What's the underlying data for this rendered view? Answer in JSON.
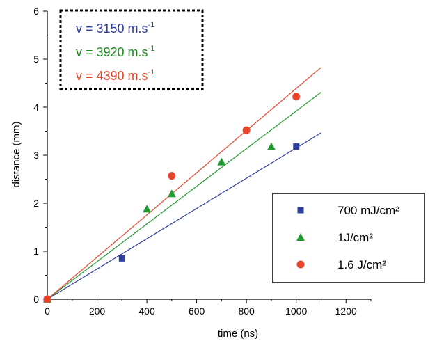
{
  "chart_data": {
    "type": "scatter",
    "xlabel": "time (ns)",
    "ylabel": "distance (mm)",
    "xlim": [
      0,
      1300
    ],
    "ylim": [
      0,
      6
    ],
    "xticks": [
      "0",
      "200",
      "400",
      "600",
      "800",
      "1000",
      "1200"
    ],
    "yticks": [
      "0",
      "1",
      "2",
      "3",
      "4",
      "5",
      "6"
    ],
    "grid": false,
    "legend_position": "bottom-right",
    "velocity_box": {
      "position": "top-left",
      "lines": [
        {
          "text": "v = 3150 m.s",
          "sup": "-1",
          "color": "#2e3f9e"
        },
        {
          "text": "v = 3920 m.s",
          "sup": "-1",
          "color": "#1f8a1f"
        },
        {
          "text": "v = 4390 m.s",
          "sup": "-1",
          "color": "#e0452a"
        }
      ]
    },
    "series": [
      {
        "name": "700 mJ/cm²",
        "marker": "square",
        "color": "#2e3f9e",
        "x": [
          0,
          300,
          1000
        ],
        "y": [
          0,
          0.85,
          3.18
        ],
        "fit_slope": 3.15
      },
      {
        "name": "1J/cm²",
        "marker": "triangle",
        "color": "#1f9a2f",
        "x": [
          0,
          400,
          500,
          700,
          900
        ],
        "y": [
          0,
          1.88,
          2.2,
          2.86,
          3.18
        ],
        "fit_slope": 3.92
      },
      {
        "name": "1.6 J/cm²",
        "marker": "circle",
        "color": "#e8452a",
        "x": [
          0,
          500,
          800,
          1000
        ],
        "y": [
          0,
          2.57,
          3.52,
          4.22
        ],
        "fit_slope": 4.39
      }
    ],
    "fit_x_range": [
      0,
      1100
    ]
  }
}
